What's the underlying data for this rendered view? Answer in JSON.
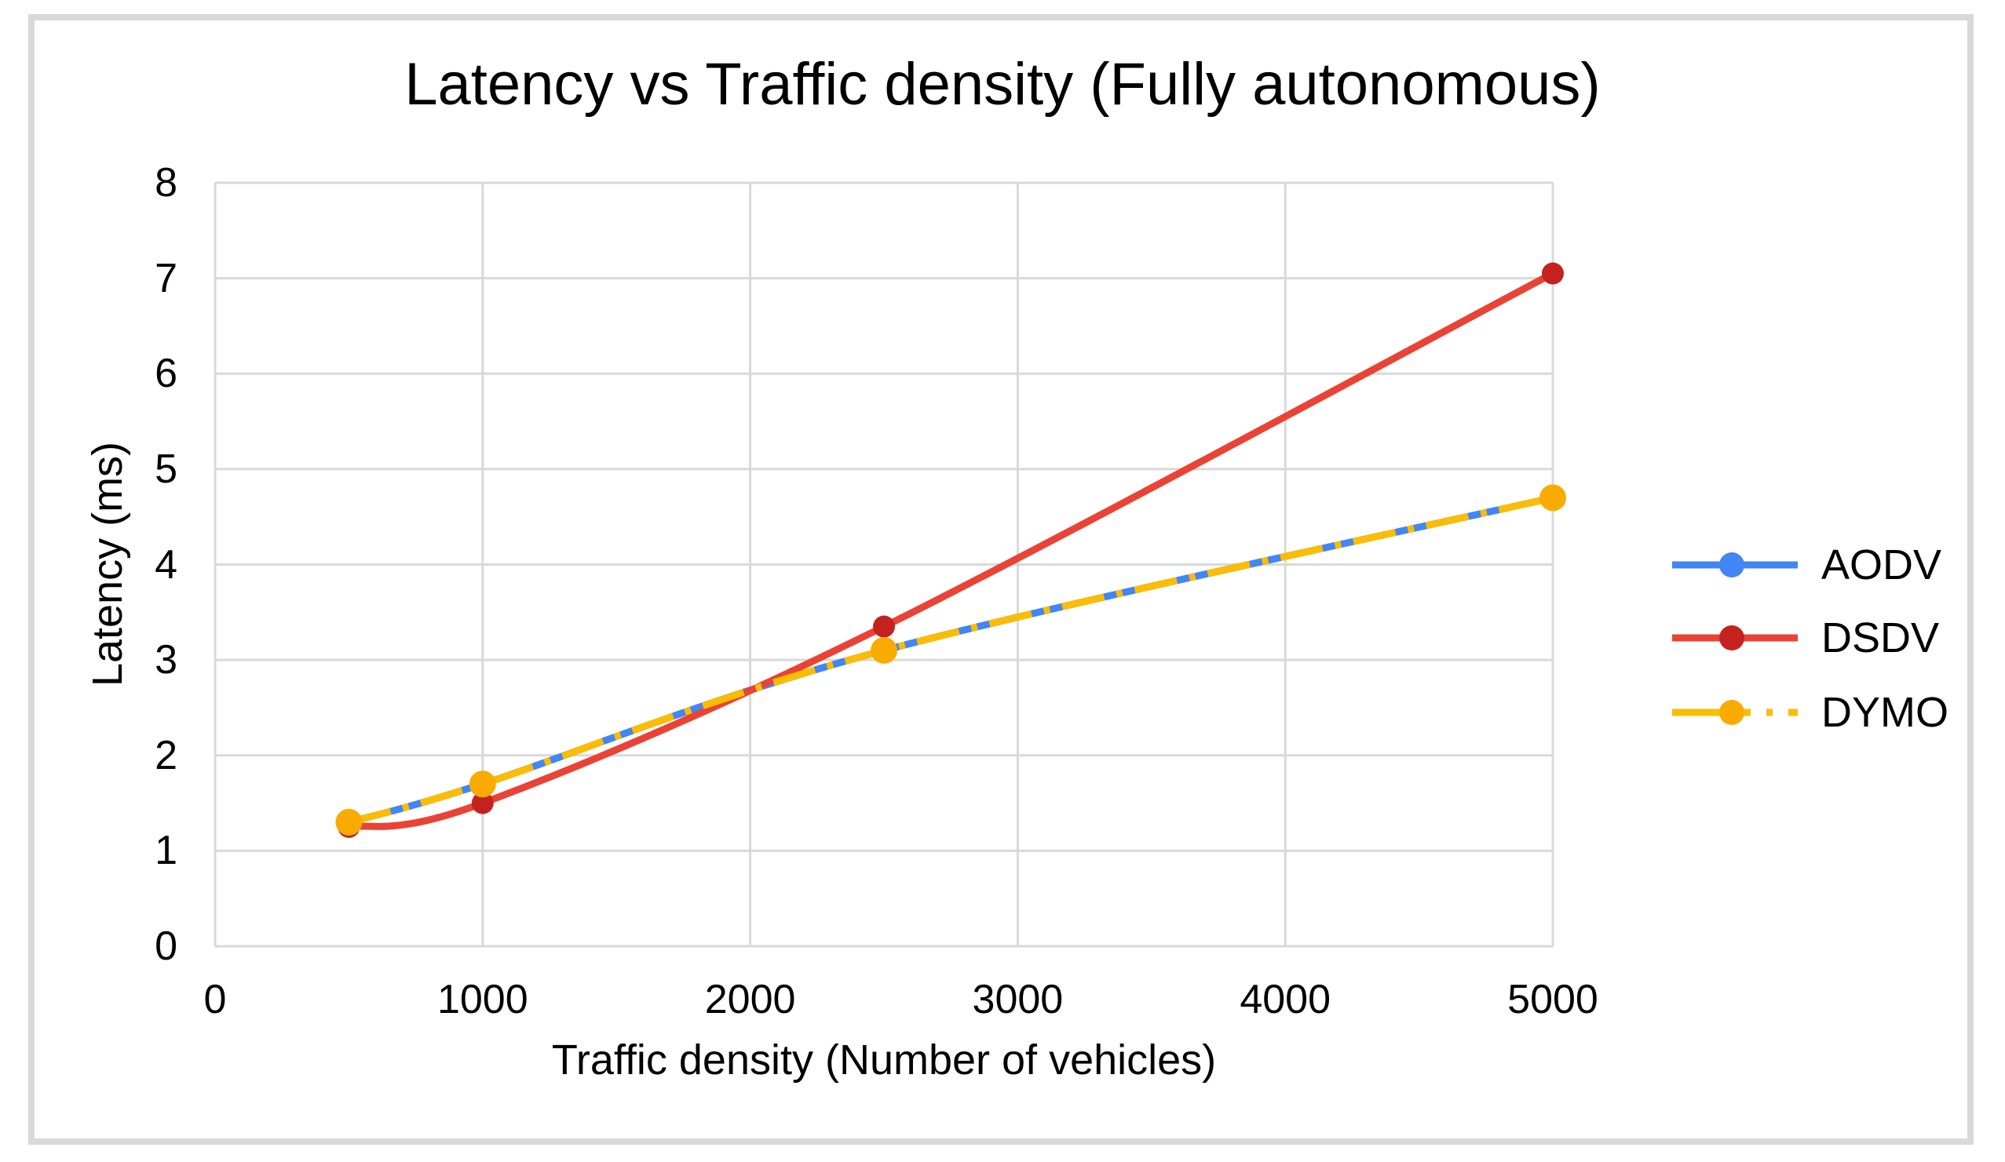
{
  "figure": {
    "background_color": "#ffffff",
    "border_color": "#d9d9d9",
    "grid_color": "#d9d9d9",
    "text_color": "#000000"
  },
  "chart_data": {
    "type": "line",
    "title": "Latency vs Traffic density (Fully autonomous)",
    "xlabel": "Traffic density (Number of vehicles)",
    "ylabel": "Latency (ms)",
    "x": [
      500,
      1000,
      2500,
      5000
    ],
    "xlim": [
      0,
      5000
    ],
    "ylim": [
      0,
      8
    ],
    "x_ticks": [
      "0",
      "1000",
      "2000",
      "3000",
      "4000",
      "5000"
    ],
    "x_tick_values": [
      0,
      1000,
      2000,
      3000,
      4000,
      5000
    ],
    "y_ticks": [
      "0",
      "1",
      "2",
      "3",
      "4",
      "5",
      "6",
      "7",
      "8"
    ],
    "y_tick_values": [
      0,
      1,
      2,
      3,
      4,
      5,
      6,
      7,
      8
    ],
    "grid": true,
    "line_smoothing": true,
    "legend_position": "right",
    "series": [
      {
        "name": "AODV",
        "values": [
          1.3,
          1.7,
          3.1,
          4.7
        ],
        "color": "#4285f4",
        "marker_color": "#4285f4",
        "dash": "solid"
      },
      {
        "name": "DSDV",
        "values": [
          1.25,
          1.5,
          3.35,
          7.05
        ],
        "color": "#ea4335",
        "marker_color": "#c5221f",
        "dash": "solid"
      },
      {
        "name": "DYMO",
        "values": [
          1.3,
          1.7,
          3.1,
          4.7
        ],
        "color": "#fbbc04",
        "marker_color": "#f9ab00",
        "dash": "dash-dot"
      }
    ]
  }
}
